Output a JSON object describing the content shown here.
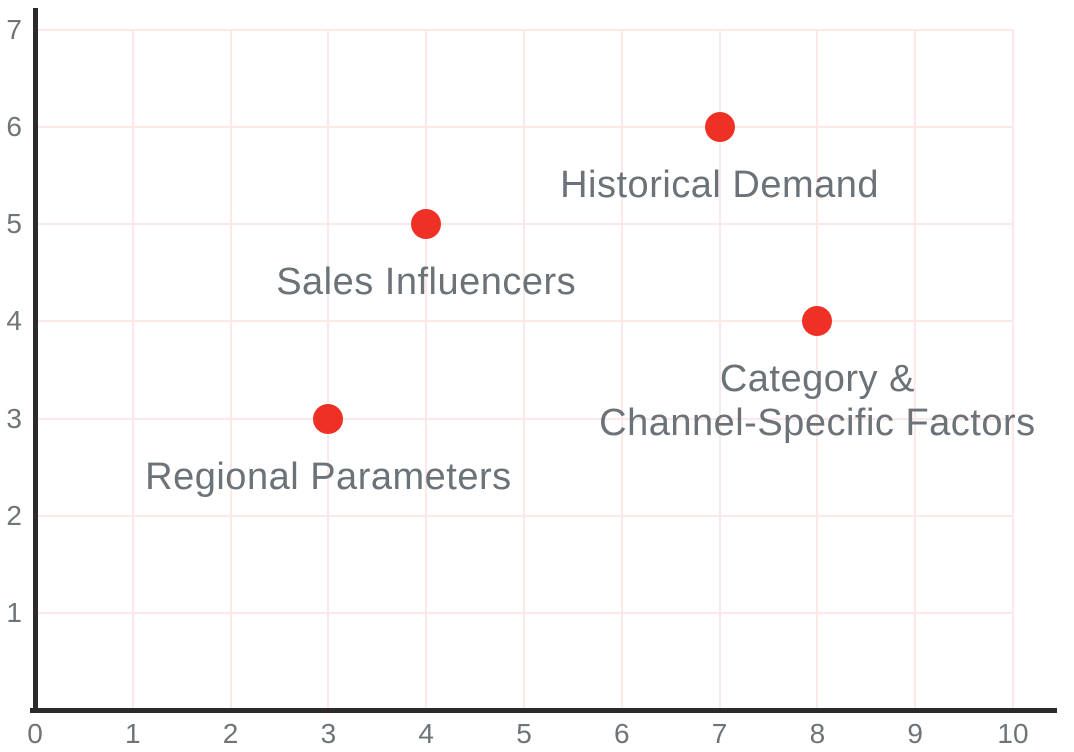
{
  "figure": {
    "background_color": "#ffffff",
    "axis_color": "#2b2b2b",
    "grid_color": "#fce8e8",
    "tick_label_color": "#6e7478",
    "point_label_color": "#6b7278",
    "point_color": "#ee3124"
  },
  "chart_data": {
    "type": "scatter",
    "title": "",
    "xlabel": "",
    "ylabel": "",
    "xlim": [
      0,
      10
    ],
    "ylim": [
      0,
      7
    ],
    "x_ticks": [
      0,
      1,
      2,
      3,
      4,
      5,
      6,
      7,
      8,
      9,
      10
    ],
    "y_ticks": [
      1,
      2,
      3,
      4,
      5,
      6,
      7
    ],
    "grid": true,
    "legend": false,
    "points": [
      {
        "x": 3,
        "y": 3,
        "label": "Regional Parameters"
      },
      {
        "x": 4,
        "y": 5,
        "label": "Sales Influencers"
      },
      {
        "x": 7,
        "y": 6,
        "label": "Historical Demand"
      },
      {
        "x": 8,
        "y": 4,
        "label": "Category &\nChannel-Specific Factors"
      }
    ]
  }
}
